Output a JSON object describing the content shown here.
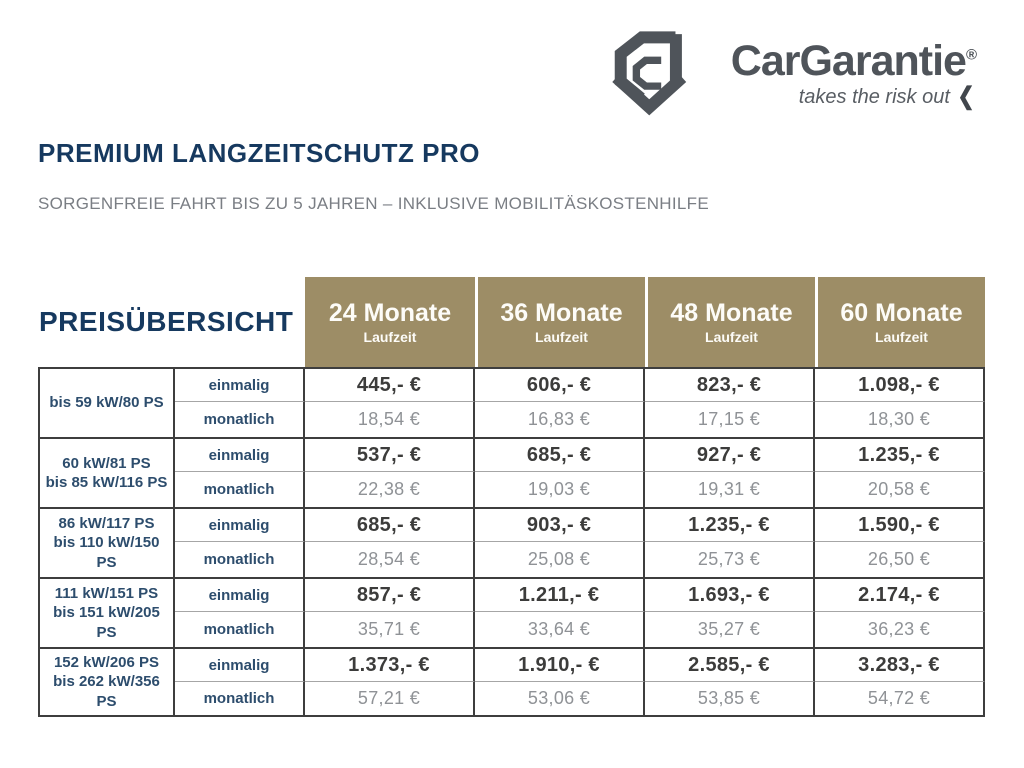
{
  "brand": {
    "name": "CarGarantie",
    "registered": "®",
    "tagline": "takes the risk out",
    "chevron": "❮",
    "logo_color": "#4f545a"
  },
  "page": {
    "title": "PREMIUM LANGZEITSCHUTZ PRO",
    "subtitle": "SORGENFREIE FAHRT BIS ZU 5 JAHREN – INKLUSIVE MOBILITÄSKOSTENHILFE"
  },
  "colors": {
    "heading_navy": "#16395f",
    "subtitle_gray": "#7a7e84",
    "header_khaki": "#9d8d66",
    "label_navy": "#2d4d6d",
    "price_once": "#3c3c3b",
    "price_monthly": "#8f9296",
    "border_dark": "#3e3e3e"
  },
  "table": {
    "caption": "PREISÜBERSICHT",
    "columns": [
      {
        "months": "24 Monate",
        "sub": "Laufzeit"
      },
      {
        "months": "36 Monate",
        "sub": "Laufzeit"
      },
      {
        "months": "48 Monate",
        "sub": "Laufzeit"
      },
      {
        "months": "60 Monate",
        "sub": "Laufzeit"
      }
    ],
    "row_labels": {
      "once": "einmalig",
      "monthly": "monatlich"
    },
    "groups": [
      {
        "power": [
          "bis 59 kW/80 PS"
        ],
        "once": [
          "445,- €",
          "606,- €",
          "823,- €",
          "1.098,- €"
        ],
        "monthly": [
          "18,54 €",
          "16,83 €",
          "17,15 €",
          "18,30 €"
        ]
      },
      {
        "power": [
          "60 kW/81 PS",
          "bis 85 kW/116 PS"
        ],
        "once": [
          "537,- €",
          "685,- €",
          "927,- €",
          "1.235,- €"
        ],
        "monthly": [
          "22,38 €",
          "19,03 €",
          "19,31 €",
          "20,58 €"
        ]
      },
      {
        "power": [
          "86 kW/117 PS",
          "bis 110 kW/150 PS"
        ],
        "once": [
          "685,- €",
          "903,- €",
          "1.235,- €",
          "1.590,- €"
        ],
        "monthly": [
          "28,54 €",
          "25,08 €",
          "25,73 €",
          "26,50 €"
        ]
      },
      {
        "power": [
          "111 kW/151 PS",
          "bis 151 kW/205 PS"
        ],
        "once": [
          "857,- €",
          "1.211,- €",
          "1.693,- €",
          "2.174,- €"
        ],
        "monthly": [
          "35,71 €",
          "33,64 €",
          "35,27 €",
          "36,23 €"
        ]
      },
      {
        "power": [
          "152 kW/206 PS",
          "bis 262 kW/356 PS"
        ],
        "once": [
          "1.373,- €",
          "1.910,- €",
          "2.585,- €",
          "3.283,- €"
        ],
        "monthly": [
          "57,21 €",
          "53,06 €",
          "53,85 €",
          "54,72 €"
        ]
      }
    ]
  }
}
